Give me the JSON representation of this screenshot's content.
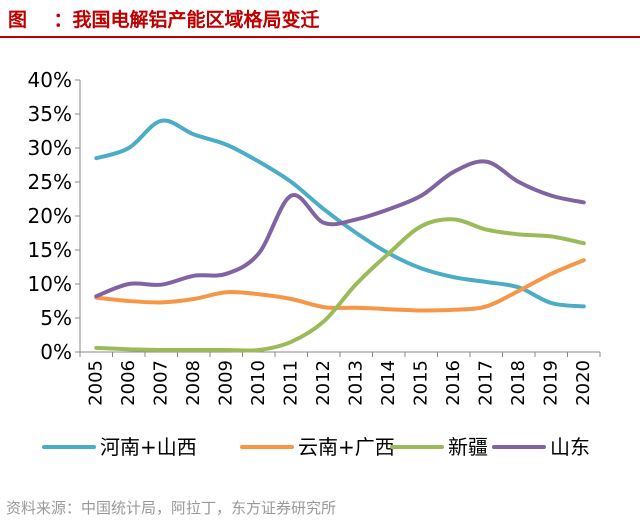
{
  "title": "图    ：我国电解铝产能区域格局变迁",
  "source": "资料来源：中国统计局，阿拉丁，东方证券研究所",
  "chart_data": {
    "type": "line",
    "title": "我国电解铝产能区域格局变迁",
    "xlabel": "",
    "ylabel": "",
    "ylim": [
      0,
      40
    ],
    "yticks": [
      "0%",
      "5%",
      "10%",
      "15%",
      "20%",
      "25%",
      "30%",
      "35%",
      "40%"
    ],
    "categories": [
      "2005",
      "2006",
      "2007",
      "2008",
      "2009",
      "2010",
      "2011",
      "2012",
      "2013",
      "2014",
      "2015",
      "2016",
      "2017",
      "2018",
      "2019",
      "2020"
    ],
    "legend_position": "bottom",
    "grid": false,
    "series": [
      {
        "name": "河南+山西",
        "color": "#4bacc6",
        "values": [
          28.5,
          30,
          34,
          32,
          30.5,
          28,
          25,
          21,
          17.5,
          14.5,
          12.3,
          11,
          10.3,
          9.5,
          7.2,
          6.7
        ]
      },
      {
        "name": "云南+广西",
        "color": "#f79646",
        "values": [
          8,
          7.5,
          7.3,
          7.8,
          8.8,
          8.5,
          7.8,
          6.6,
          6.5,
          6.3,
          6.1,
          6.2,
          6.7,
          9,
          11.5,
          13.5
        ]
      },
      {
        "name": "新疆",
        "color": "#9bbb59",
        "values": [
          0.6,
          0.4,
          0.3,
          0.3,
          0.3,
          0.3,
          1.5,
          4.5,
          10,
          14.5,
          18.5,
          19.5,
          18,
          17.3,
          17,
          16
        ]
      },
      {
        "name": "山东",
        "color": "#8064a2",
        "values": [
          8.2,
          10,
          9.9,
          11.2,
          11.5,
          14.5,
          23,
          19,
          19.5,
          21,
          23,
          26.5,
          28,
          25,
          23,
          22
        ]
      }
    ]
  }
}
